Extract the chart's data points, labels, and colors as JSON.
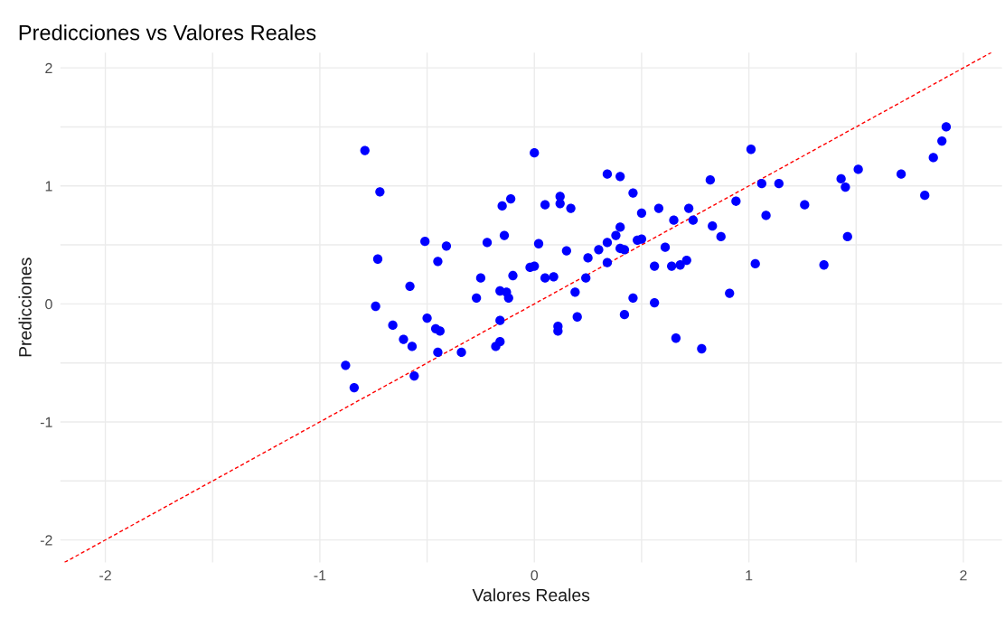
{
  "chart_data": {
    "type": "scatter",
    "title": "Predicciones vs Valores Reales",
    "xlabel": "Valores Reales",
    "ylabel": "Predicciones",
    "xlim": [
      -2.21,
      2.18
    ],
    "ylim": [
      -2.19,
      2.13
    ],
    "xticks": [
      -2,
      {
        "value": -1.5,
        "label": null
      },
      -1,
      {
        "value": -0.5,
        "label": null
      },
      0,
      {
        "value": 0.5,
        "label": null
      },
      1,
      {
        "value": 1.5,
        "label": null
      },
      2
    ],
    "yticks": [
      -2,
      {
        "value": -1.5,
        "label": null
      },
      -1,
      {
        "value": -0.5,
        "label": null
      },
      0,
      {
        "value": 0.5,
        "label": null
      },
      1,
      {
        "value": 1.5,
        "label": null
      },
      2
    ],
    "grid": true,
    "series": [
      {
        "marker": "circle",
        "color": "#0000ff",
        "x": [
          -0.88,
          -0.84,
          -0.79,
          -0.72,
          -0.73,
          -0.74,
          -0.66,
          -0.61,
          -0.57,
          -0.58,
          -0.56,
          -0.51,
          -0.5,
          -0.46,
          -0.44,
          -0.45,
          -0.41,
          -0.45,
          -0.34,
          -0.27,
          -0.25,
          -0.22,
          -0.18,
          -0.16,
          -0.15,
          -0.11,
          -0.14,
          -0.16,
          -0.13,
          -0.12,
          -0.16,
          -0.1,
          -0.02,
          0.0,
          0.0,
          0.34,
          0.4,
          0.05,
          0.12,
          0.12,
          0.17,
          0.46,
          0.5,
          0.58,
          0.72,
          0.65,
          0.74,
          0.82,
          0.94,
          1.01,
          0.83,
          0.87,
          0.02,
          0.4,
          0.38,
          0.34,
          0.48,
          0.5,
          0.4,
          0.42,
          0.15,
          0.3,
          0.61,
          0.25,
          0.34,
          0.56,
          0.64,
          0.68,
          0.71,
          0.05,
          0.09,
          0.24,
          0.19,
          0.46,
          0.56,
          0.91,
          0.2,
          0.11,
          0.11,
          0.42,
          0.66,
          0.78,
          1.03,
          1.06,
          1.14,
          1.08,
          1.26,
          1.43,
          1.45,
          1.51,
          1.46,
          1.35,
          1.71,
          1.82,
          1.86,
          1.9,
          1.92
        ],
        "values": [
          -0.52,
          -0.71,
          1.3,
          0.95,
          0.38,
          -0.02,
          -0.18,
          -0.3,
          -0.36,
          0.15,
          -0.61,
          0.53,
          -0.12,
          -0.21,
          -0.23,
          0.36,
          0.49,
          -0.41,
          -0.41,
          0.05,
          0.22,
          0.52,
          -0.36,
          -0.32,
          0.83,
          0.89,
          0.58,
          0.11,
          0.1,
          0.05,
          -0.14,
          0.24,
          0.31,
          1.28,
          0.32,
          1.1,
          1.08,
          0.84,
          0.91,
          0.85,
          0.81,
          0.94,
          0.77,
          0.81,
          0.81,
          0.71,
          0.71,
          1.05,
          0.87,
          1.31,
          0.66,
          0.57,
          0.51,
          0.65,
          0.58,
          0.52,
          0.54,
          0.55,
          0.47,
          0.46,
          0.45,
          0.46,
          0.48,
          0.39,
          0.35,
          0.32,
          0.32,
          0.33,
          0.37,
          0.22,
          0.23,
          0.22,
          0.1,
          0.05,
          0.01,
          0.09,
          -0.11,
          -0.19,
          -0.23,
          -0.09,
          -0.29,
          -0.38,
          0.34,
          1.02,
          1.02,
          0.75,
          0.84,
          1.06,
          0.99,
          1.14,
          0.57,
          0.33,
          1.1,
          0.92,
          1.24,
          1.38,
          1.5
        ]
      },
      {
        "type": "line",
        "color": "#ff0000",
        "line_style": "dashed",
        "x": [
          -2.19,
          2.13
        ],
        "values": [
          -2.19,
          2.13
        ]
      }
    ]
  }
}
